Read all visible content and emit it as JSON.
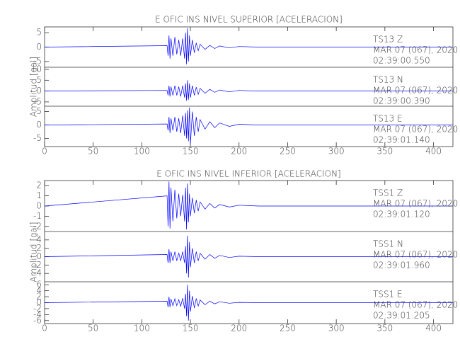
{
  "chart_data": [
    {
      "type": "line",
      "title": "E OFIC INS NIVEL SUPERIOR [ACELERACION]",
      "y_label": "Amplitud [gal]",
      "xlim": [
        0,
        420
      ],
      "xticks": [
        0,
        50,
        100,
        150,
        200,
        250,
        300,
        350,
        400
      ],
      "subplots": [
        {
          "ylim": [
            -7,
            7
          ],
          "yticks": [
            -5,
            0,
            5
          ],
          "annotation": [
            "TS13   Z",
            "MAR 07 (067), 2020",
            "02:39:00.550"
          ],
          "series": [
            {
              "color": "#0000ff",
              "x": [
                0,
                126,
                127,
                128,
                129,
                130,
                132,
                134,
                136,
                138,
                140,
                142,
                144,
                145,
                146,
                147,
                148,
                149,
                150,
                152,
                154,
                156,
                158,
                160,
                165,
                170,
                175,
                180,
                190,
                200,
                220,
                420
              ],
              "values": [
                0,
                0.5,
                -3,
                4,
                -4,
                3,
                -3,
                3.5,
                -2.5,
                2.5,
                -3,
                3,
                -4,
                5,
                -6,
                6.5,
                -5,
                4,
                -3,
                2.5,
                -2,
                1.5,
                -1.2,
                1,
                -0.8,
                0.6,
                -0.5,
                0.4,
                -0.3,
                0.2,
                0,
                0
              ]
            }
          ]
        },
        {
          "ylim": [
            -7,
            11
          ],
          "yticks": [
            -5,
            0,
            5,
            10
          ],
          "annotation": [
            "TS13   N",
            "MAR 07 (067), 2020",
            "02:39:00.390"
          ],
          "series": [
            {
              "color": "#0000ff",
              "x": [
                0,
                126,
                127,
                128,
                129,
                130,
                132,
                134,
                136,
                138,
                140,
                142,
                144,
                145,
                146,
                147,
                148,
                149,
                150,
                152,
                154,
                156,
                158,
                160,
                165,
                170,
                175,
                180,
                190,
                200,
                220,
                420
              ],
              "values": [
                0,
                0.3,
                -2,
                2.5,
                -2.5,
                2,
                -2,
                2.5,
                -2,
                2,
                -2.5,
                2.5,
                -3,
                3.5,
                -4.5,
                5,
                -4,
                3.5,
                -3,
                2.5,
                -2,
                1.8,
                -1.5,
                1.2,
                -1,
                0.8,
                -0.6,
                0.5,
                -0.4,
                0.3,
                0,
                0
              ]
            }
          ]
        },
        {
          "ylim": [
            -8,
            7
          ],
          "yticks": [
            -5,
            0,
            5
          ],
          "annotation": [
            "TS13   E",
            "MAR 07 (067), 2020",
            "02:39:01.140"
          ],
          "series": [
            {
              "color": "#0000ff",
              "x": [
                0,
                126,
                127,
                128,
                129,
                130,
                132,
                134,
                136,
                138,
                140,
                142,
                144,
                145,
                146,
                147,
                148,
                149,
                150,
                152,
                154,
                156,
                158,
                160,
                165,
                170,
                175,
                180,
                190,
                200,
                220,
                420
              ],
              "values": [
                0,
                0.4,
                -2,
                3,
                -3,
                2.5,
                -2,
                3,
                -2.5,
                2.5,
                -3,
                3.5,
                -4,
                4.5,
                -5,
                5.5,
                -6,
                6.5,
                -7,
                5,
                -4,
                3,
                -2.5,
                2,
                -1.5,
                1.2,
                -1,
                0.8,
                -0.5,
                0.3,
                0,
                0
              ]
            }
          ]
        }
      ]
    },
    {
      "type": "line",
      "title": "E OFIC INS NIVEL INFERIOR [ACELERACION]",
      "y_label": "Amplitud [gal]",
      "xlim": [
        0,
        420
      ],
      "xticks": [
        0,
        50,
        100,
        150,
        200,
        250,
        300,
        350,
        400
      ],
      "subplots": [
        {
          "ylim": [
            -2.5,
            2.5
          ],
          "yticks": [
            -2,
            -1,
            0,
            1,
            2
          ],
          "annotation": [
            "TSS1   Z",
            "MAR 07 (067), 2020",
            "02:39:01.120"
          ],
          "series": [
            {
              "color": "#0000ff",
              "x": [
                0,
                126,
                127,
                128,
                129,
                130,
                132,
                134,
                136,
                138,
                140,
                142,
                144,
                145,
                146,
                147,
                148,
                149,
                150,
                152,
                154,
                156,
                158,
                160,
                165,
                170,
                175,
                180,
                190,
                200,
                220,
                420
              ],
              "values": [
                0,
                1,
                -2,
                2.4,
                -2.2,
                1.8,
                -1.5,
                1.6,
                -1.2,
                1.2,
                -1,
                1.1,
                -1.5,
                1.8,
                -2.3,
                2.2,
                -1.6,
                1.2,
                -1,
                0.8,
                -0.7,
                0.6,
                -0.5,
                0.4,
                -0.3,
                0.25,
                -0.2,
                0.15,
                -0.1,
                0.08,
                0,
                0
              ]
            }
          ]
        },
        {
          "ylim": [
            -6,
            6
          ],
          "yticks": [
            -4,
            -2,
            0,
            2,
            4
          ],
          "annotation": [
            "TSS1   N",
            "MAR 07 (067), 2020",
            "02:39:01.960"
          ],
          "series": [
            {
              "color": "#0000ff",
              "x": [
                0,
                126,
                127,
                128,
                129,
                130,
                132,
                134,
                136,
                138,
                140,
                142,
                144,
                145,
                146,
                147,
                148,
                149,
                150,
                152,
                154,
                156,
                158,
                160,
                165,
                170,
                175,
                180,
                190,
                200,
                220,
                420
              ],
              "values": [
                0,
                0.5,
                -1.5,
                1.8,
                -1.5,
                1.2,
                -1,
                1.2,
                -1,
                0.9,
                -1,
                1.2,
                -1.5,
                2.5,
                -4,
                5,
                -5,
                3.5,
                -2.5,
                2,
                -1.5,
                1.2,
                -1,
                0.8,
                -0.6,
                0.5,
                -0.4,
                0.3,
                -0.2,
                0.1,
                0,
                0
              ]
            }
          ]
        },
        {
          "ylim": [
            -7,
            7
          ],
          "yticks": [
            -6,
            -4,
            -2,
            0,
            2,
            4,
            6
          ],
          "annotation": [
            "TSS1   E",
            "MAR 07 (067), 2020",
            "02:39:01.205"
          ],
          "series": [
            {
              "color": "#0000ff",
              "x": [
                0,
                126,
                127,
                128,
                129,
                130,
                132,
                134,
                136,
                138,
                140,
                142,
                144,
                145,
                146,
                147,
                148,
                149,
                150,
                152,
                154,
                156,
                158,
                160,
                165,
                170,
                175,
                180,
                190,
                200,
                220,
                420
              ],
              "values": [
                0,
                0.5,
                -1.5,
                2,
                -1.5,
                1.2,
                -1,
                1.3,
                -1,
                1,
                -1.2,
                1.5,
                -2,
                3,
                -4.5,
                6,
                -6,
                4,
                -3,
                2.2,
                -1.8,
                1.4,
                -1.1,
                0.9,
                -0.7,
                0.5,
                -0.4,
                0.3,
                -0.2,
                0.1,
                0,
                0
              ]
            }
          ]
        }
      ]
    }
  ]
}
